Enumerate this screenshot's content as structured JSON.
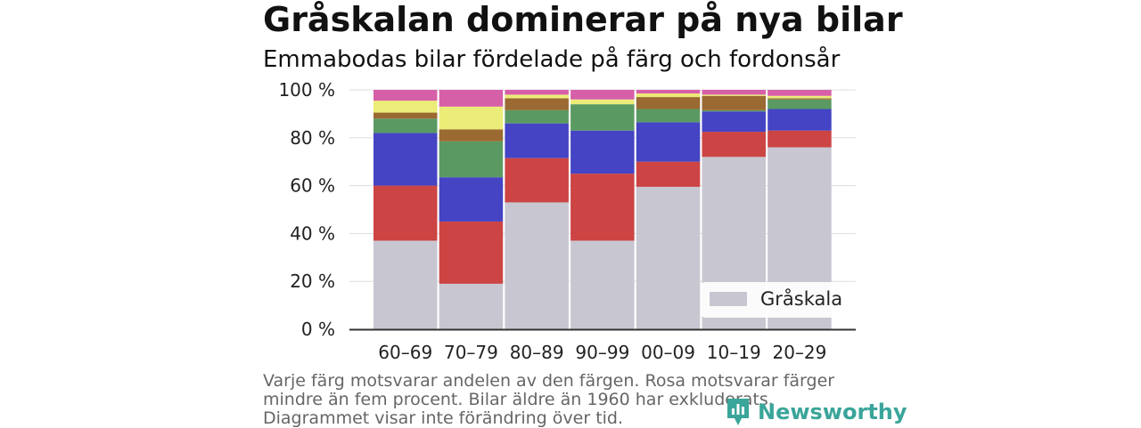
{
  "header": {
    "title": "Gråskalan dominerar på nya bilar",
    "subtitle": "Emmabodas bilar fördelade på färg och fordonsår"
  },
  "footnote": "Varje färg motsvarar andelen av den färgen. Rosa motsvarar färger mindre än fem procent. Bilar äldre än 1960 har exkluderats. Diagrammet visar inte förändring över tid.",
  "brand": {
    "name": "Newsworthy",
    "icon": "newsworthy-logo-icon",
    "color": "#3aa59a"
  },
  "chart_data": {
    "type": "bar",
    "stacked": true,
    "categories": [
      "60–69",
      "70–79",
      "80–89",
      "90–99",
      "00–09",
      "10–19",
      "20–29"
    ],
    "ylim": [
      0,
      100
    ],
    "yticks": [
      0,
      20,
      40,
      60,
      80,
      100
    ],
    "ytick_labels": [
      "0 %",
      "20 %",
      "40 %",
      "60 %",
      "80 %",
      "100 %"
    ],
    "grid": true,
    "legend": {
      "position": "bottom-right",
      "entries": [
        "Gråskala"
      ]
    },
    "series": [
      {
        "name": "Gråskala",
        "color": "#c8c6d1",
        "values": [
          37,
          19,
          53,
          37,
          59.5,
          72,
          76
        ]
      },
      {
        "color": "#cc4444",
        "values": [
          23,
          26,
          18.5,
          28,
          10.5,
          10.5,
          7
        ]
      },
      {
        "color": "#4444c4",
        "values": [
          22,
          18.5,
          14.5,
          18,
          16.5,
          8.5,
          9
        ]
      },
      {
        "color": "#5a9a62",
        "values": [
          6,
          15,
          5.5,
          11,
          5.5,
          0.5,
          4
        ]
      },
      {
        "color": "#9a6a32",
        "values": [
          2.5,
          5,
          5,
          0,
          5,
          6,
          0.5
        ]
      },
      {
        "color": "#ecec78",
        "values": [
          5,
          9.5,
          1.5,
          2,
          1.5,
          0.5,
          1
        ]
      },
      {
        "color": "#d660a8",
        "values": [
          4.5,
          7,
          2,
          4,
          1.5,
          2,
          2.5
        ]
      }
    ]
  }
}
